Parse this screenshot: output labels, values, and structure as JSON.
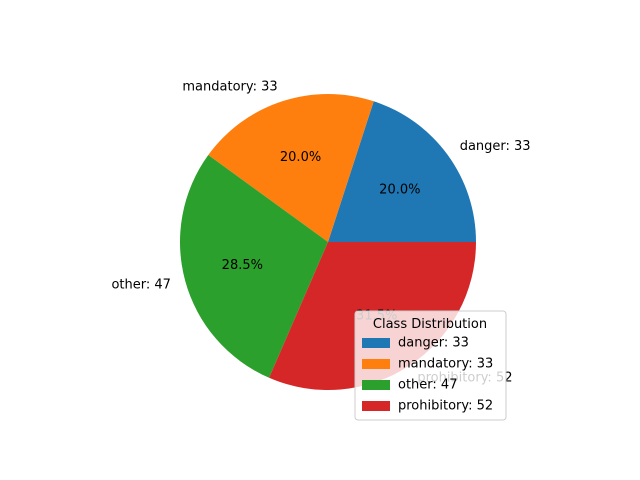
{
  "chart_data": {
    "type": "pie",
    "categories": [
      "danger",
      "mandatory",
      "other",
      "prohibitory"
    ],
    "values": [
      33,
      33,
      47,
      52
    ],
    "slice_labels": [
      "danger: 33",
      "mandatory: 33",
      "other: 47",
      "prohibitory: 52"
    ],
    "percent_labels": [
      "20.0%",
      "20.0%",
      "28.5%",
      "31.5%"
    ],
    "colors": [
      "#1f77b4",
      "#ff7f0e",
      "#2ca02c",
      "#d62728"
    ],
    "start_angle_deg": 0,
    "direction": "counterclockwise",
    "legend": {
      "title": "Class Distribution",
      "placement": "lower-right",
      "entries": [
        "danger: 33",
        "mandatory: 33",
        "other: 47",
        "prohibitory: 52"
      ]
    }
  }
}
